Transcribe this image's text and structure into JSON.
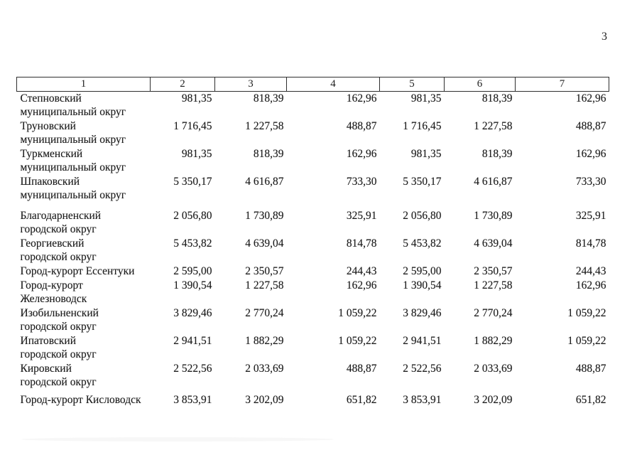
{
  "page": {
    "number": "3"
  },
  "table": {
    "headers": [
      "1",
      "2",
      "3",
      "4",
      "5",
      "6",
      "7"
    ],
    "rows": [
      {
        "name": "Степновский\nмуниципальный округ",
        "values": [
          "981,35",
          "818,39",
          "162,96",
          "981,35",
          "818,39",
          "162,96"
        ]
      },
      {
        "name": "Труновский\nмуниципальный округ",
        "values": [
          "1 716,45",
          "1 227,58",
          "488,87",
          "1 716,45",
          "1 227,58",
          "488,87"
        ]
      },
      {
        "name": "Туркменский\nмуниципальный округ",
        "values": [
          "981,35",
          "818,39",
          "162,96",
          "981,35",
          "818,39",
          "162,96"
        ]
      },
      {
        "name": "Шпаковский\nмуниципальный округ",
        "values": [
          "5 350,17",
          "4 616,87",
          "733,30",
          "5 350,17",
          "4 616,87",
          "733,30"
        ]
      },
      {
        "name": "Благодарненский\nгородской округ",
        "values": [
          "2 056,80",
          "1 730,89",
          "325,91",
          "2 056,80",
          "1 730,89",
          "325,91"
        ]
      },
      {
        "name": "Георгиевский\nгородской округ",
        "values": [
          "5 453,82",
          "4 639,04",
          "814,78",
          "5 453,82",
          "4 639,04",
          "814,78"
        ]
      },
      {
        "name": "Город-курорт Ессентуки",
        "values": [
          "2 595,00",
          "2 350,57",
          "244,43",
          "2 595,00",
          "2 350,57",
          "244,43"
        ]
      },
      {
        "name": "Город-курорт\nЖелезноводск",
        "values": [
          "1 390,54",
          "1 227,58",
          "162,96",
          "1 390,54",
          "1 227,58",
          "162,96"
        ]
      },
      {
        "name": "Изобильненский\nгородской округ",
        "values": [
          "3 829,46",
          "2 770,24",
          "1 059,22",
          "3 829,46",
          "2 770,24",
          "1 059,22"
        ]
      },
      {
        "name": "Ипатовский\nгородской округ",
        "values": [
          "2 941,51",
          "1 882,29",
          "1 059,22",
          "2 941,51",
          "1 882,29",
          "1 059,22"
        ]
      },
      {
        "name": "Кировский\nгородской округ",
        "values": [
          "2 522,56",
          "2 033,69",
          "488,87",
          "2 522,56",
          "2 033,69",
          "488,87"
        ]
      },
      {
        "name": "Город-курорт Кисловодск",
        "values": [
          "3 853,91",
          "3 202,09",
          "651,82",
          "3 853,91",
          "3 202,09",
          "651,82"
        ]
      }
    ]
  }
}
